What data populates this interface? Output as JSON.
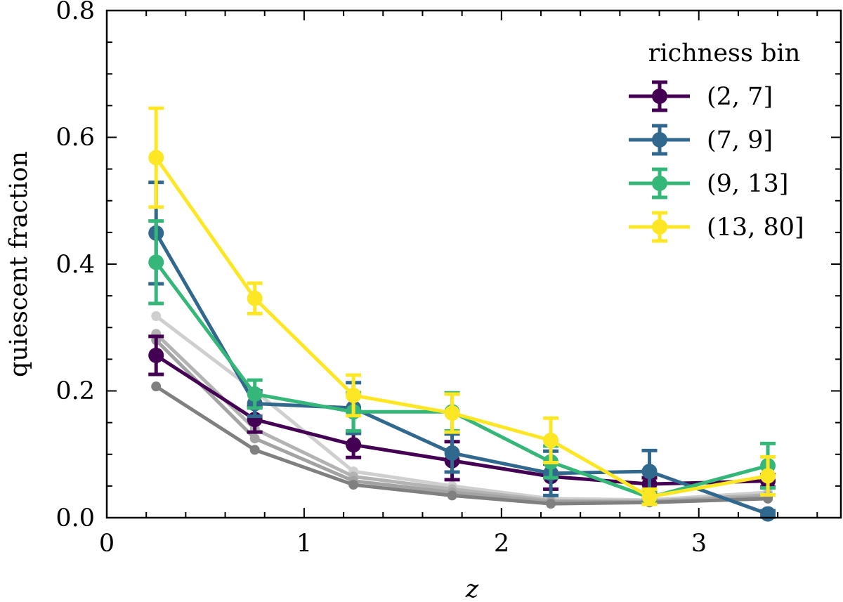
{
  "chart_data": {
    "type": "line",
    "title": "",
    "xlabel": "z",
    "ylabel": "quiescent fraction",
    "xlim": [
      0,
      3.72
    ],
    "ylim": [
      0,
      0.8
    ],
    "xticks": [
      "0",
      "1",
      "2",
      "3"
    ],
    "yticks": [
      "0.0",
      "0.2",
      "0.4",
      "0.6",
      "0.8"
    ],
    "grid": false,
    "legend": {
      "title": "richness bin",
      "placement": "top-right"
    },
    "x": [
      0.25,
      0.75,
      1.25,
      1.75,
      2.25,
      2.75,
      3.35
    ],
    "series": [
      {
        "name": "(2, 7]",
        "color": "#440154",
        "values": [
          0.256,
          0.155,
          0.115,
          0.09,
          0.065,
          0.053,
          0.058
        ],
        "errors": [
          0.03,
          0.02,
          0.02,
          0.03,
          0.02,
          0.01,
          0.01
        ]
      },
      {
        "name": "(7, 9]",
        "color": "#31688e",
        "values": [
          0.449,
          0.18,
          0.173,
          0.102,
          0.07,
          0.073,
          0.006
        ],
        "errors": [
          0.08,
          0.02,
          0.04,
          0.03,
          0.035,
          0.033,
          0.005
        ]
      },
      {
        "name": "(9, 13]",
        "color": "#35b779",
        "values": [
          0.403,
          0.195,
          0.167,
          0.167,
          0.088,
          0.032,
          0.082
        ],
        "errors": [
          0.065,
          0.022,
          0.03,
          0.03,
          0.025,
          0.01,
          0.035
        ]
      },
      {
        "name": "(13, 80]",
        "color": "#fde725",
        "values": [
          0.568,
          0.346,
          0.193,
          0.165,
          0.122,
          0.033,
          0.066
        ],
        "errors": [
          0.078,
          0.024,
          0.032,
          0.03,
          0.035,
          0.012,
          0.03
        ]
      }
    ],
    "background_series": [
      {
        "color": "#cfcfcf",
        "values": [
          0.318,
          0.2,
          0.073,
          0.05,
          0.03,
          0.028,
          0.04
        ]
      },
      {
        "color": "#b3b3b3",
        "values": [
          0.29,
          0.14,
          0.065,
          0.045,
          0.027,
          0.026,
          0.036
        ]
      },
      {
        "color": "#a3a3a3",
        "values": [
          0.28,
          0.125,
          0.058,
          0.04,
          0.025,
          0.025,
          0.033
        ]
      },
      {
        "color": "#808080",
        "values": [
          0.207,
          0.107,
          0.052,
          0.035,
          0.022,
          0.024,
          0.03
        ]
      }
    ]
  }
}
